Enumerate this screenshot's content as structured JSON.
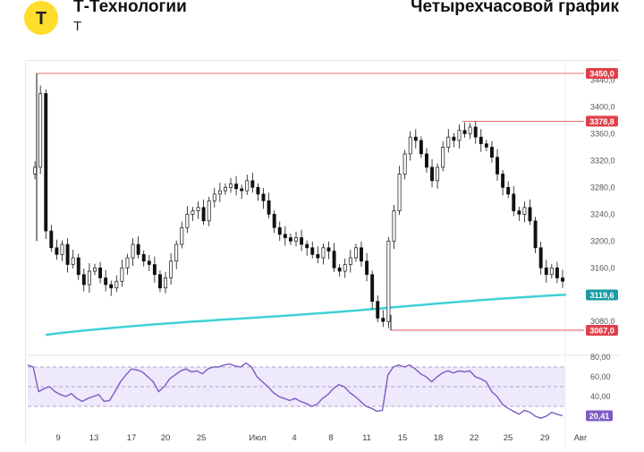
{
  "header": {
    "company": "Т-Технологии",
    "ticker": "T",
    "logo_letter": "T",
    "chart_title": "Четырехчасовой график"
  },
  "colors": {
    "logo_yellow": "#ffdd2d",
    "price_line": "#111111",
    "ma_line": "#3fd0d6",
    "level_line": "#e0404a",
    "ma_badge": "#1a9ba5",
    "rsi_line": "#7b5cc4",
    "rsi_band": "#eee9fb"
  },
  "chart_data": [
    {
      "type": "candlestick",
      "x_ticks": [
        "9",
        "13",
        "17",
        "20",
        "25",
        "Июл",
        "4",
        "8",
        "11",
        "15",
        "18",
        "22",
        "25",
        "29",
        "Авг"
      ],
      "ylim": [
        3050,
        3460
      ],
      "y_ticks": [
        "3440,0",
        "3400,0",
        "3360,0",
        "3320,0",
        "3280,0",
        "3240,0",
        "3200,0",
        "3160,0",
        "3080,0"
      ],
      "series": [
        {
          "close_path": [
            3300,
            3310,
            3420,
            3215,
            3190,
            3180,
            3195,
            3165,
            3175,
            3150,
            3135,
            3155,
            3160,
            3145,
            3135,
            3130,
            3140,
            3160,
            3175,
            3195,
            3180,
            3170,
            3165,
            3150,
            3130,
            3145,
            3170,
            3195,
            3220,
            3240,
            3245,
            3250,
            3230,
            3260,
            3270,
            3275,
            3280,
            3285,
            3278,
            3275,
            3290,
            3280,
            3270,
            3260,
            3240,
            3220,
            3210,
            3205,
            3200,
            3205,
            3195,
            3190,
            3180,
            3175,
            3190,
            3185,
            3160,
            3155,
            3165,
            3175,
            3190,
            3170,
            3150,
            3110,
            3085,
            3080,
            3200,
            3245,
            3300,
            3330,
            3355,
            3350,
            3330,
            3310,
            3290,
            3310,
            3340,
            3355,
            3350,
            3365,
            3360,
            3370,
            3355,
            3345,
            3340,
            3325,
            3300,
            3280,
            3270,
            3245,
            3240,
            3250,
            3230,
            3190,
            3160,
            3150,
            3160,
            3145,
            3140
          ]
        },
        {
          "name": "MA",
          "start": 3060,
          "end": 3119.6
        }
      ],
      "levels": [
        {
          "label": "3450,0",
          "value": 3450.0
        },
        {
          "label": "3378,8",
          "value": 3378.8
        },
        {
          "label": "3067,0",
          "value": 3067.0
        }
      ],
      "last_value_label": "3119,6"
    },
    {
      "type": "line",
      "ylim": [
        15,
        80
      ],
      "y_ticks": [
        "80,00",
        "60,00",
        "40,00"
      ],
      "band": [
        30,
        70
      ],
      "midline": 50,
      "values": [
        72,
        70,
        45,
        48,
        50,
        45,
        42,
        40,
        43,
        38,
        35,
        38,
        40,
        42,
        35,
        36,
        45,
        55,
        62,
        68,
        67,
        65,
        60,
        55,
        45,
        50,
        58,
        62,
        66,
        68,
        65,
        66,
        63,
        68,
        70,
        70,
        72,
        73,
        71,
        70,
        74,
        70,
        60,
        55,
        50,
        44,
        40,
        38,
        36,
        38,
        35,
        33,
        30,
        32,
        38,
        42,
        48,
        52,
        50,
        44,
        40,
        35,
        30,
        28,
        25,
        26,
        62,
        70,
        72,
        70,
        72,
        68,
        63,
        60,
        55,
        60,
        64,
        66,
        64,
        66,
        65,
        66,
        60,
        58,
        55,
        45,
        40,
        32,
        28,
        25,
        22,
        26,
        24,
        20,
        18,
        20,
        24,
        22,
        20.41
      ],
      "last_value_label": "20,41"
    }
  ]
}
